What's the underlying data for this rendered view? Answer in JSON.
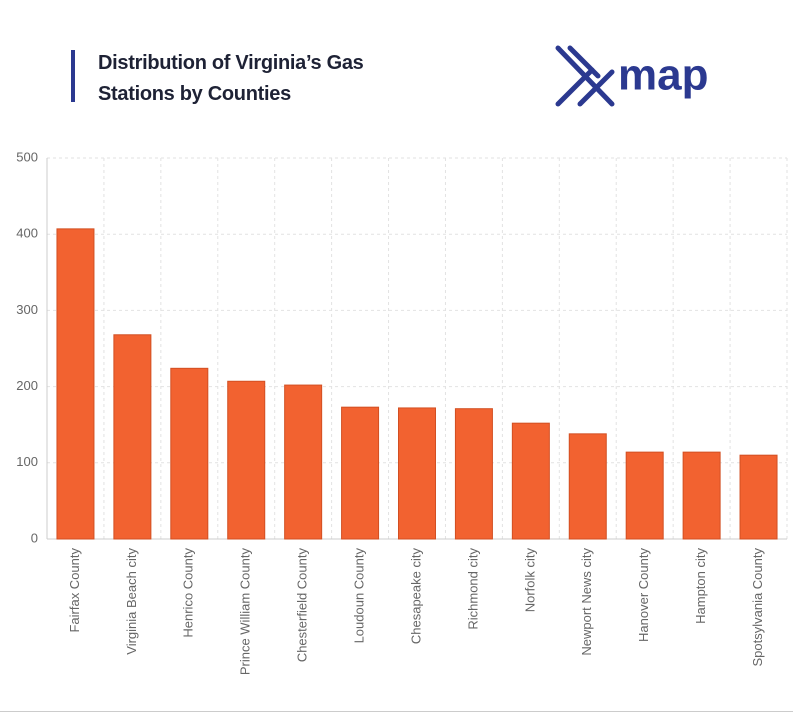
{
  "header": {
    "title": "Distribution of Virginia’s Gas Stations by Counties",
    "logo_text": "map"
  },
  "chart_data": {
    "type": "bar",
    "categories": [
      "Fairfax County",
      "Virginia Beach city",
      "Henrico County",
      "Prince William County",
      "Chesterfield County",
      "Loudoun County",
      "Chesapeake city",
      "Richmond city",
      "Norfolk city",
      "Newport News city",
      "Hanover County",
      "Hampton city",
      "Spotsylvania County"
    ],
    "values": [
      407,
      268,
      224,
      207,
      202,
      173,
      172,
      171,
      152,
      138,
      114,
      114,
      110
    ],
    "color": "#f26230",
    "ylim": [
      0,
      500
    ],
    "yticks": [
      0,
      100,
      200,
      300,
      400,
      500
    ],
    "grid": true
  }
}
